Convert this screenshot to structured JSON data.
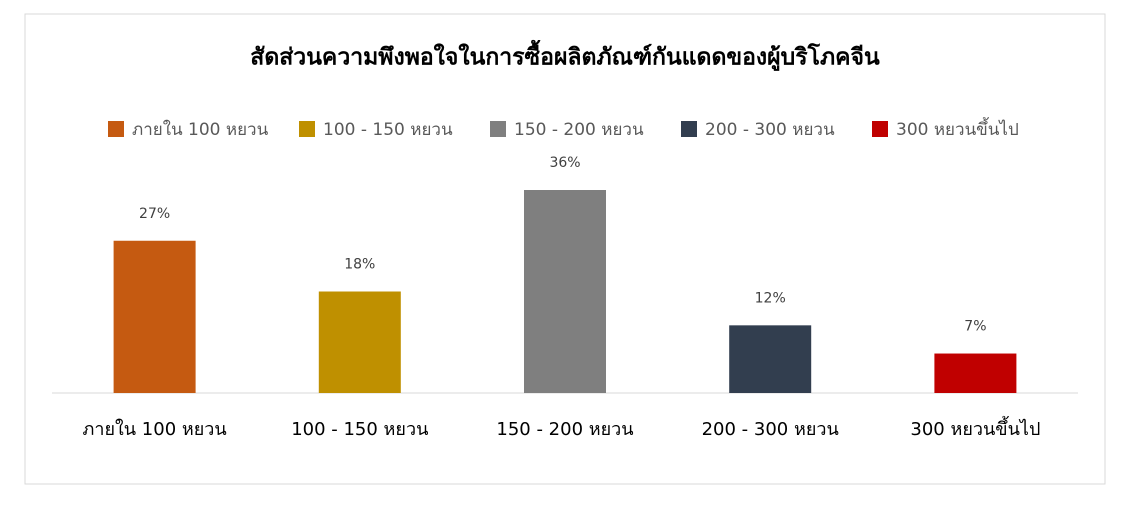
{
  "chart_data": {
    "type": "bar",
    "title": "สัดส่วนความพึงพอใจในการซื้อผลิตภัณฑ์กันแดดของผู้บริโภคจีน",
    "categories": [
      "ภายใน 100 หยวน",
      "100 - 150 หยวน",
      "150 - 200 หยวน",
      "200 - 300 หยวน",
      "300 หยวนขึ้นไป"
    ],
    "values": [
      27,
      18,
      36,
      12,
      7
    ],
    "value_labels": [
      "27%",
      "18%",
      "36%",
      "12%",
      "7%"
    ],
    "colors": [
      "#C55A11",
      "#BF9000",
      "#7F7F7F",
      "#323E4F",
      "#C00000"
    ],
    "legend": "top"
  }
}
